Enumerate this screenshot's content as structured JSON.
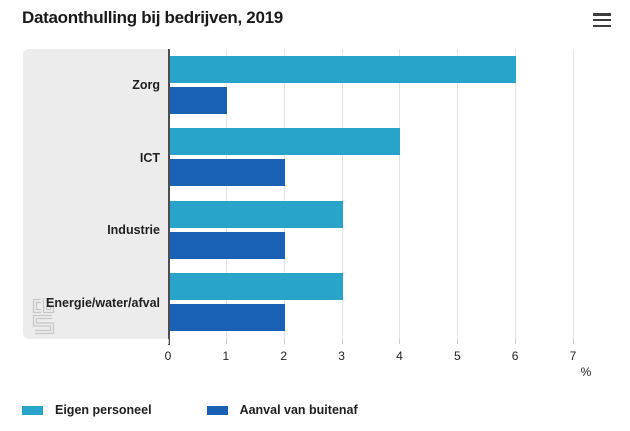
{
  "header": {
    "menu_icon": "hamburger-menu-icon"
  },
  "chart_data": {
    "type": "bar",
    "orientation": "horizontal",
    "title": "Dataonthulling bij bedrijven, 2019",
    "categories": [
      "Zorg",
      "ICT",
      "Industrie",
      "Energie/water/afval"
    ],
    "series": [
      {
        "name": "Eigen personeel",
        "color": "#28a4ca",
        "values": [
          6,
          4,
          3,
          3
        ]
      },
      {
        "name": "Aanval van buitenaf",
        "color": "#1961b4",
        "values": [
          1,
          2,
          2,
          2
        ]
      }
    ],
    "xlabel": "%",
    "xlim": [
      0,
      7
    ],
    "xticks": [
      0,
      1,
      2,
      3,
      4,
      5,
      6,
      7
    ],
    "grid": true,
    "legend_position": "bottom",
    "watermark": "cbs-logo"
  },
  "colors": {
    "panel_gray": "#ececec",
    "axis_line": "#4d4d4d",
    "gridline": "#e3e3e3",
    "title_text": "#1a1a1a"
  }
}
